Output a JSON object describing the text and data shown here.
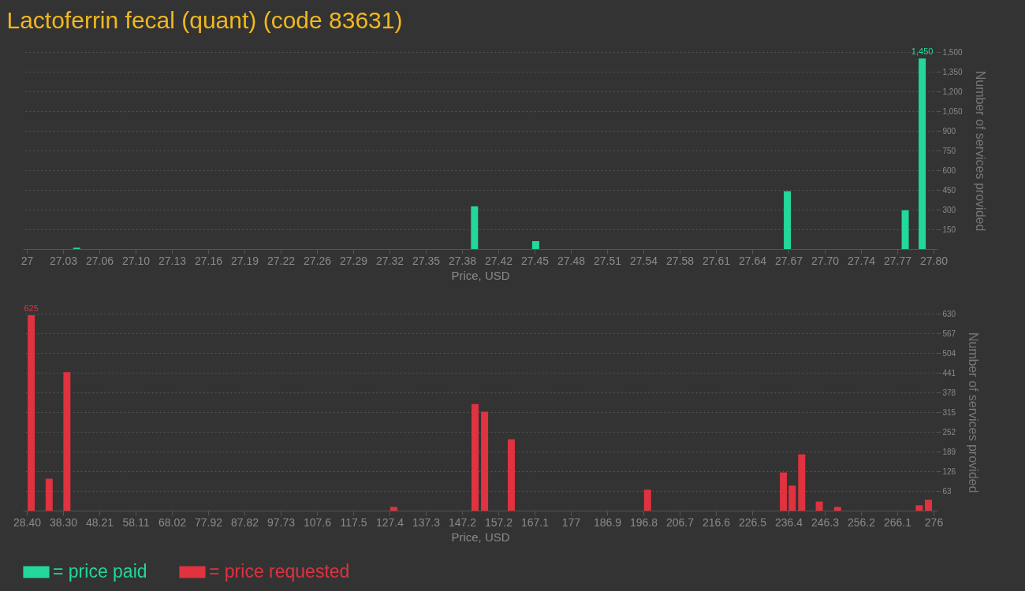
{
  "chart_data": [
    {
      "type": "bar",
      "title": "Lactoferrin fecal (quant) (code 83631)",
      "xlabel": "Price, USD",
      "ylabel": "Number of services provided",
      "xlim": [
        27,
        27.8
      ],
      "xticks": [
        27,
        {
          "value": 27.032,
          "label": "27.03"
        },
        {
          "value": 27.064,
          "label": "27.06"
        },
        {
          "value": 27.096,
          "label": "27.10"
        },
        {
          "value": 27.128,
          "label": "27.13"
        },
        27.16,
        {
          "value": 27.192,
          "label": "27.19"
        },
        {
          "value": 27.224,
          "label": "27.22"
        },
        {
          "value": 27.256,
          "label": "27.26"
        },
        {
          "value": 27.288,
          "label": "27.29"
        },
        27.32,
        {
          "value": 27.352,
          "label": "27.35"
        },
        {
          "value": 27.384,
          "label": "27.38"
        },
        {
          "value": 27.416,
          "label": "27.42"
        },
        {
          "value": 27.448,
          "label": "27.45"
        },
        27.48,
        {
          "value": 27.512,
          "label": "27.51"
        },
        {
          "value": 27.544,
          "label": "27.54"
        },
        {
          "value": 27.576,
          "label": "27.58"
        },
        {
          "value": 27.608,
          "label": "27.61"
        },
        27.64,
        {
          "value": 27.672,
          "label": "27.67"
        },
        {
          "value": 27.704,
          "label": "27.70"
        },
        {
          "value": 27.736,
          "label": "27.74"
        },
        {
          "value": 27.768,
          "label": "27.77"
        },
        {
          "value": 27.8,
          "label": "27.80"
        }
      ],
      "ylim": [
        0,
        1500
      ],
      "yticks": [
        150,
        300,
        450,
        600,
        750,
        900,
        {
          "value": 1050,
          "label": "1,050"
        },
        {
          "value": 1200,
          "label": "1,200"
        },
        {
          "value": 1350,
          "label": "1,350"
        },
        {
          "value": 1500,
          "label": "1,500"
        }
      ],
      "grid": "y",
      "legend": "bottom left",
      "series": [
        {
          "name": "= price paid",
          "color": "#22d89a",
          "x": [
            27.044,
            27.395,
            27.449,
            27.671,
            27.775,
            27.79
          ],
          "values": [
            10,
            325,
            60,
            440,
            295,
            1450
          ],
          "value_labels": [
            null,
            null,
            null,
            null,
            null,
            "1,450"
          ]
        }
      ]
    },
    {
      "type": "bar",
      "xlabel": "Price, USD",
      "ylabel": "Number of services provided",
      "xlim": [
        28.4,
        276
      ],
      "xticks": [
        {
          "value": 28.4,
          "label": "28.40"
        },
        {
          "value": 38.304,
          "label": "38.30"
        },
        {
          "value": 48.208,
          "label": "48.21"
        },
        {
          "value": 58.112,
          "label": "58.11"
        },
        {
          "value": 68.016,
          "label": "68.02"
        },
        77.92,
        {
          "value": 87.824,
          "label": "87.82"
        },
        {
          "value": 97.728,
          "label": "97.73"
        },
        {
          "value": 107.632,
          "label": "107.6"
        },
        {
          "value": 117.536,
          "label": "117.5"
        },
        {
          "value": 127.44,
          "label": "127.4"
        },
        {
          "value": 137.344,
          "label": "137.3"
        },
        {
          "value": 147.248,
          "label": "147.2"
        },
        {
          "value": 157.152,
          "label": "157.2"
        },
        {
          "value": 167.056,
          "label": "167.1"
        },
        {
          "value": 176.96,
          "label": "177"
        },
        {
          "value": 186.864,
          "label": "186.9"
        },
        {
          "value": 196.768,
          "label": "196.8"
        },
        {
          "value": 206.672,
          "label": "206.7"
        },
        {
          "value": 216.576,
          "label": "216.6"
        },
        {
          "value": 226.48,
          "label": "226.5"
        },
        {
          "value": 236.384,
          "label": "236.4"
        },
        {
          "value": 246.288,
          "label": "246.3"
        },
        {
          "value": 256.192,
          "label": "256.2"
        },
        {
          "value": 266.096,
          "label": "266.1"
        },
        276
      ],
      "ylim": [
        0,
        630
      ],
      "yticks": [
        63,
        126,
        189,
        252,
        315,
        378,
        441,
        504,
        567,
        630
      ],
      "grid": "y",
      "legend": "bottom left",
      "series": [
        {
          "name": "= price requested",
          "color": "#e0323f",
          "x": [
            29.6,
            34.5,
            39.35,
            128.6,
            150.8,
            153.4,
            160.7,
            197.9,
            235.0,
            237.4,
            240.0,
            244.8,
            249.8,
            272.1,
            274.6
          ],
          "values": [
            625,
            102,
            443,
            12,
            341,
            316,
            228,
            67,
            122,
            80,
            180,
            29,
            12,
            17,
            35
          ],
          "value_labels": [
            "625",
            null,
            null,
            null,
            null,
            null,
            null,
            null,
            null,
            null,
            null,
            null,
            null,
            null,
            null
          ]
        }
      ]
    }
  ]
}
